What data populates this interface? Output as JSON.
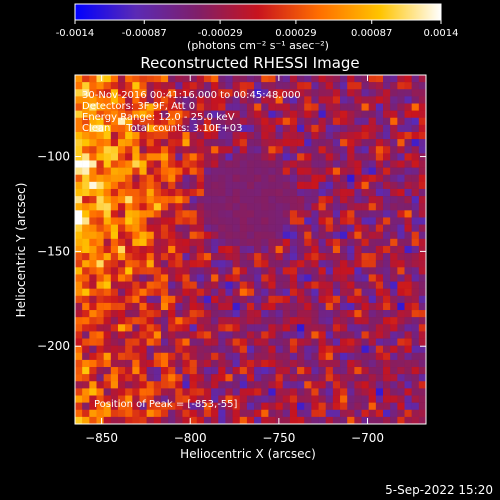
{
  "colorbar": {
    "ticks": [
      "-0.0014",
      "-0.00087",
      "-0.00029",
      "0.00029",
      "0.00087",
      "0.0014"
    ],
    "tick_values": [
      -0.0014,
      -0.00087,
      -0.00029,
      0.00029,
      0.00087,
      0.0014
    ],
    "range": [
      -0.0014,
      0.0014
    ],
    "units_label": "(photons cm⁻² s⁻¹ asec⁻²)",
    "colors": [
      "#0000ff",
      "#5b2ab5",
      "#7f1f6a",
      "#c8141e",
      "#ff6e00",
      "#ffc400",
      "#ffffff"
    ]
  },
  "chart_data": {
    "type": "heatmap",
    "title": "Reconstructed RHESSI Image",
    "xlabel": "Heliocentric X (arcsec)",
    "ylabel": "Heliocentric Y (arcsec)",
    "xlim": [
      -865,
      -667
    ],
    "ylim": [
      -241,
      -57
    ],
    "xticks": [
      -850,
      -800,
      -750,
      -700
    ],
    "yticks": [
      -100,
      -150,
      -200
    ],
    "xtick_labels": [
      "−850",
      "−800",
      "−750",
      "−700"
    ],
    "ytick_labels": [
      "−100",
      "−150",
      "−200"
    ],
    "annotations": [
      "30-Nov-2016 00:41:16.000 to 00:45:48.000",
      "Detectors: 3F 9F, Att 0",
      "Energy Range: 12.0 - 25.0 keV",
      "Clean     Total counts: 3.10E+03"
    ],
    "peak_label": "Position of Peak = [-853,-55]",
    "peak_position": [
      -853,
      -55
    ]
  },
  "footer": {
    "date": "5-Sep-2022 15:20"
  }
}
